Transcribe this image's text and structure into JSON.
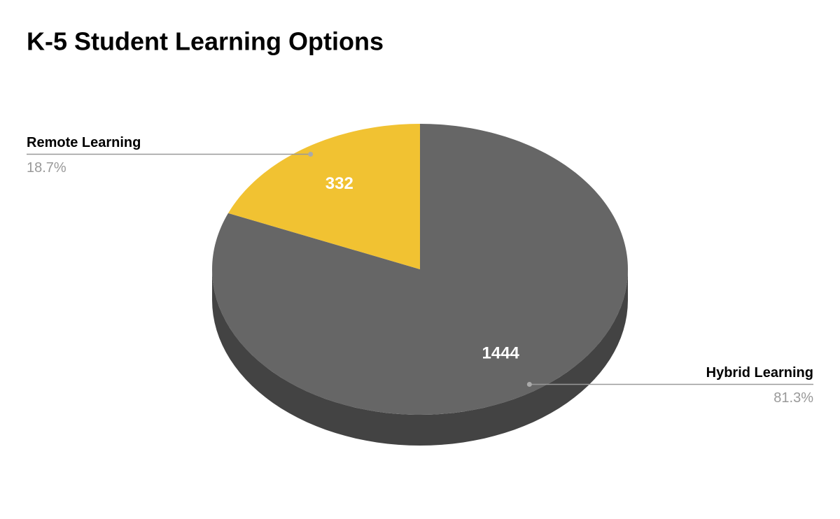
{
  "chart_data": {
    "type": "pie",
    "title": "K-5 Student Learning Options",
    "categories": [
      "Hybrid Learning",
      "Remote Learning"
    ],
    "values": [
      1444,
      332
    ],
    "percent_values": [
      81.3,
      18.7
    ],
    "percent_labels": [
      "81.3%",
      "18.7%"
    ],
    "colors": [
      "#666666",
      "#f1c232"
    ]
  }
}
